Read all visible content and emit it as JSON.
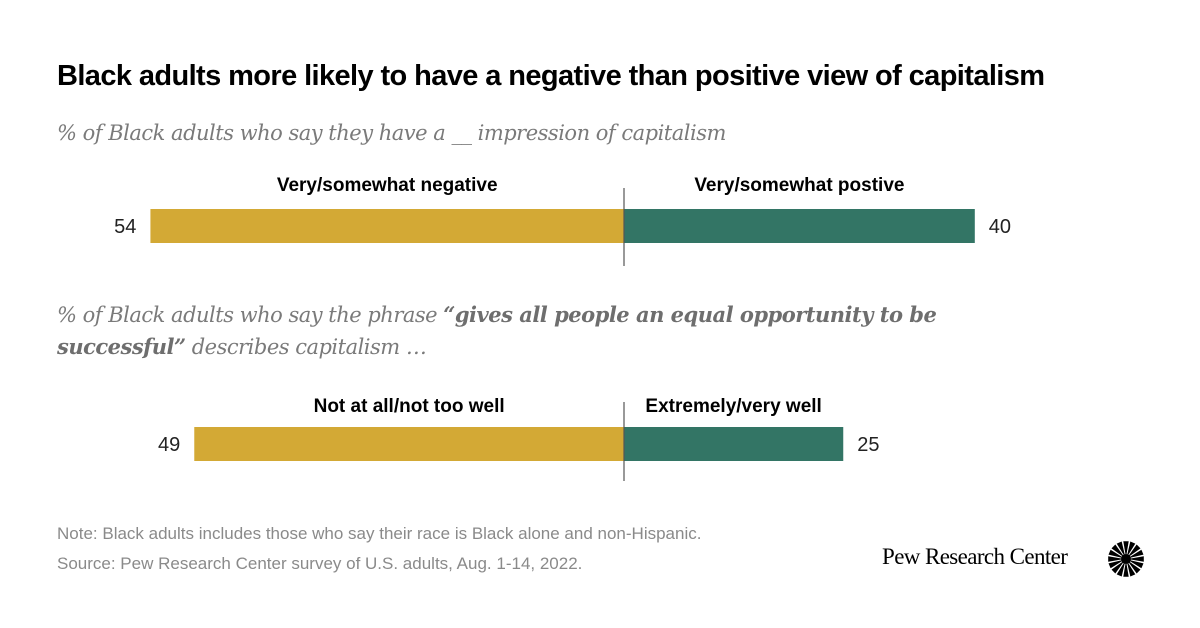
{
  "title": "Black adults more likely to have a negative than positive view of capitalism",
  "subtitle1": "% of Black adults who say they have a __ impression of capitalism",
  "subtitle2": {
    "prefix": "% of Black adults who say the phrase ",
    "emphasis": "“gives all people an equal opportunity to be successful”",
    "suffix": " describes capitalism …"
  },
  "colors": {
    "negative": "#D3A935",
    "positive": "#337565",
    "divider": "#555555"
  },
  "chart_data": [
    {
      "type": "bar",
      "orientation": "horizontal-diverging",
      "question": "% of Black adults who say they have a __ impression of capitalism",
      "series": [
        {
          "name": "Very/somewhat negative",
          "value": 54,
          "side": "left"
        },
        {
          "name": "Very/somewhat postive",
          "value": 40,
          "side": "right"
        }
      ]
    },
    {
      "type": "bar",
      "orientation": "horizontal-diverging",
      "question": "% of Black adults who say the phrase “gives all people an equal opportunity to be successful” describes capitalism …",
      "series": [
        {
          "name": "Not at all/not too well",
          "value": 49,
          "side": "left"
        },
        {
          "name": "Extremely/very well",
          "value": 25,
          "side": "right"
        }
      ]
    }
  ],
  "note": "Note: Black adults includes those who say their race is Black alone and non-Hispanic.",
  "source": "Source: Pew Research Center survey of U.S. adults, Aug. 1-14, 2022.",
  "logo_text": "Pew Research Center"
}
